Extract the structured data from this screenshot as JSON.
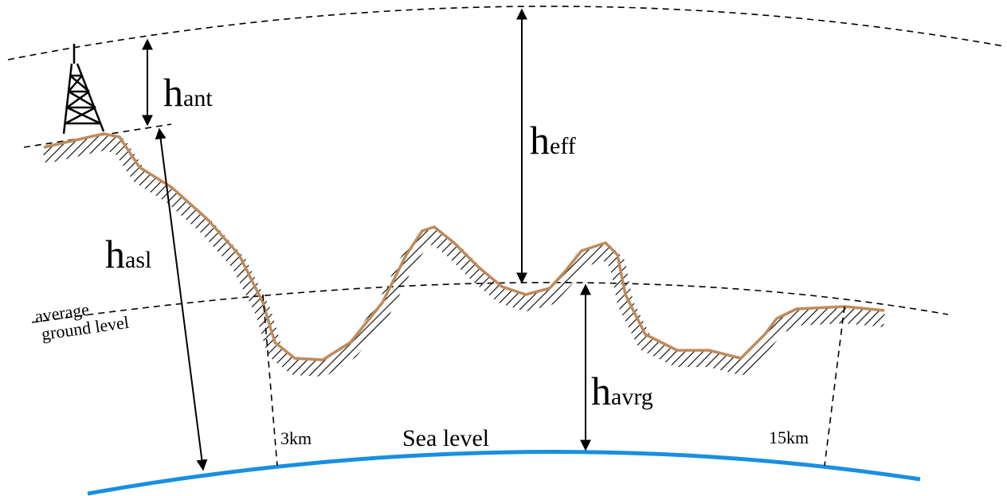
{
  "labels": {
    "h_ant": {
      "main": "h",
      "sub": "ant"
    },
    "h_eff": {
      "main": "h",
      "sub": "eff"
    },
    "h_asl": {
      "main": "h",
      "sub": "asl"
    },
    "h_avrg": {
      "main": "h",
      "sub": "avrg"
    },
    "average_ground_level": [
      "average",
      "ground level"
    ],
    "start_distance": "3km",
    "end_distance": "15km",
    "sea_level": "Sea level"
  }
}
